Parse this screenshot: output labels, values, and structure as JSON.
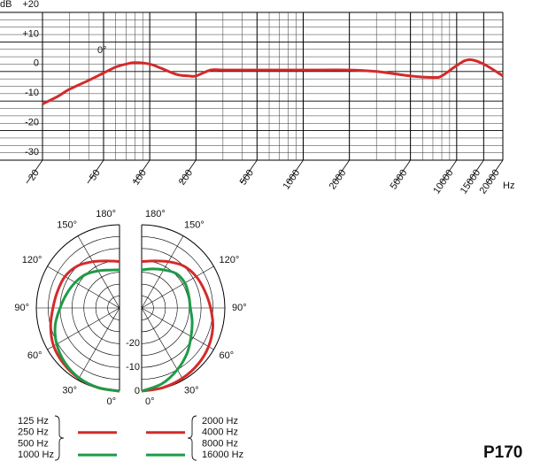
{
  "model": "P170",
  "chart_data": [
    {
      "type": "line",
      "y_label": "dB",
      "x_label": "Hz",
      "annotation": "0°",
      "log_x": true,
      "grid": true,
      "color": "#d42a2a",
      "xlim": [
        20,
        20000
      ],
      "ylim": [
        -30,
        20
      ],
      "xticks": [
        20,
        50,
        100,
        200,
        500,
        1000,
        2000,
        5000,
        10000,
        15000,
        20000
      ],
      "yticks": [
        {
          "value": 20,
          "label": "+20"
        },
        {
          "value": 10,
          "label": "+10"
        },
        0,
        -10,
        -20,
        -30
      ],
      "x": [
        20,
        25,
        30,
        40,
        50,
        60,
        70,
        80,
        100,
        120,
        150,
        180,
        200,
        250,
        300,
        500,
        1000,
        2000,
        3000,
        5000,
        7000,
        8000,
        10000,
        12000,
        15000,
        20000
      ],
      "values": [
        -11,
        -8.5,
        -6,
        -3,
        -0.5,
        1.5,
        2.5,
        3,
        2.5,
        1,
        -1,
        -1.5,
        -1.5,
        0.5,
        0.5,
        0.5,
        0.5,
        0.5,
        0,
        -1.5,
        -2,
        -1.5,
        2,
        4,
        2.5,
        -1.5
      ]
    },
    {
      "type": "polar",
      "rlim": [
        -35,
        0
      ],
      "rticks": [
        0,
        -10,
        -20
      ],
      "angle_ticks": [
        {
          "value": 0,
          "label": "0°"
        },
        {
          "value": 30,
          "label": "30°"
        },
        {
          "value": 60,
          "label": "60°"
        },
        {
          "value": 90,
          "label": "90°"
        },
        {
          "value": 120,
          "label": "120°"
        },
        {
          "value": 150,
          "label": "150°"
        },
        {
          "value": 180,
          "label": "180°"
        }
      ],
      "angles": [
        0,
        15,
        30,
        45,
        60,
        75,
        90,
        105,
        120,
        135,
        150,
        165,
        180
      ],
      "series": [
        {
          "labels": [
            "125 Hz",
            "250 Hz",
            "500 Hz"
          ],
          "color": "#d42a2a",
          "side": "left",
          "values": [
            0,
            -0.3,
            -0.8,
            -1.8,
            -3,
            -5,
            -7,
            -8,
            -8.5,
            -10,
            -12.5,
            -14.5,
            -15.5
          ]
        },
        {
          "labels": [
            "1000 Hz"
          ],
          "color": "#1f9a48",
          "side": "left",
          "values": [
            0,
            -0.3,
            -1,
            -2.5,
            -4.5,
            -7,
            -10,
            -12,
            -13.5,
            -15,
            -17,
            -18.5,
            -19
          ]
        },
        {
          "labels": [
            "2000 Hz",
            "4000 Hz",
            "8000 Hz"
          ],
          "color": "#d42a2a",
          "side": "right",
          "values": [
            0,
            -0.3,
            -0.8,
            -1.5,
            -2.5,
            -4,
            -6,
            -7.5,
            -8.5,
            -10,
            -12.5,
            -14.5,
            -15.5
          ]
        },
        {
          "labels": [
            "16000 Hz"
          ],
          "color": "#1f9a48",
          "side": "right",
          "values": [
            0,
            -2,
            -5,
            -8,
            -11,
            -13,
            -14.5,
            -14.5,
            -14,
            -14.5,
            -16.5,
            -18,
            -19
          ]
        }
      ]
    }
  ]
}
